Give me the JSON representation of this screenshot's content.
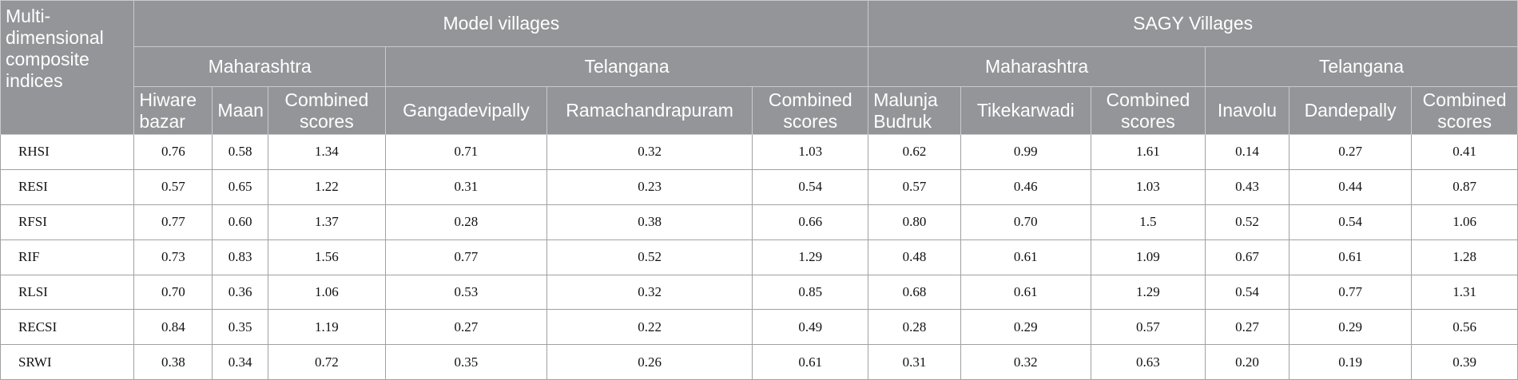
{
  "header": {
    "corner": "Multi-dimensional composite indices",
    "groups": [
      {
        "label": "Model villages",
        "states": [
          {
            "label": "Maharashtra",
            "columns": [
              "Hiware bazar",
              "Maan",
              "Combined scores"
            ]
          },
          {
            "label": "Telangana",
            "columns": [
              "Gangadevipally",
              "Ramachandrapuram",
              "Combined scores"
            ]
          }
        ]
      },
      {
        "label": "SAGY Villages",
        "states": [
          {
            "label": "Maharashtra",
            "columns": [
              "Malunja Budruk",
              "Tikekarwadi",
              "Combined scores"
            ]
          },
          {
            "label": "Telangana",
            "columns": [
              "Inavolu",
              "Dandepally",
              "Combined scores"
            ]
          }
        ]
      }
    ]
  },
  "rows": [
    {
      "label": "RHSI",
      "values": [
        "0.76",
        "0.58",
        "1.34",
        "0.71",
        "0.32",
        "1.03",
        "0.62",
        "0.99",
        "1.61",
        "0.14",
        "0.27",
        "0.41"
      ]
    },
    {
      "label": "RESI",
      "values": [
        "0.57",
        "0.65",
        "1.22",
        "0.31",
        "0.23",
        "0.54",
        "0.57",
        "0.46",
        "1.03",
        "0.43",
        "0.44",
        "0.87"
      ]
    },
    {
      "label": "RFSI",
      "values": [
        "0.77",
        "0.60",
        "1.37",
        "0.28",
        "0.38",
        "0.66",
        "0.80",
        "0.70",
        "1.5",
        "0.52",
        "0.54",
        "1.06"
      ]
    },
    {
      "label": "RIF",
      "values": [
        "0.73",
        "0.83",
        "1.56",
        "0.77",
        "0.52",
        "1.29",
        "0.48",
        "0.61",
        "1.09",
        "0.67",
        "0.61",
        "1.28"
      ]
    },
    {
      "label": "RLSI",
      "values": [
        "0.70",
        "0.36",
        "1.06",
        "0.53",
        "0.32",
        "0.85",
        "0.68",
        "0.61",
        "1.29",
        "0.54",
        "0.77",
        "1.31"
      ]
    },
    {
      "label": "RECSI",
      "values": [
        "0.84",
        "0.35",
        "1.19",
        "0.27",
        "0.22",
        "0.49",
        "0.28",
        "0.29",
        "0.57",
        "0.27",
        "0.29",
        "0.56"
      ]
    },
    {
      "label": "SRWI",
      "values": [
        "0.38",
        "0.34",
        "0.72",
        "0.35",
        "0.26",
        "0.61",
        "0.31",
        "0.32",
        "0.63",
        "0.20",
        "0.19",
        "0.39"
      ]
    }
  ]
}
